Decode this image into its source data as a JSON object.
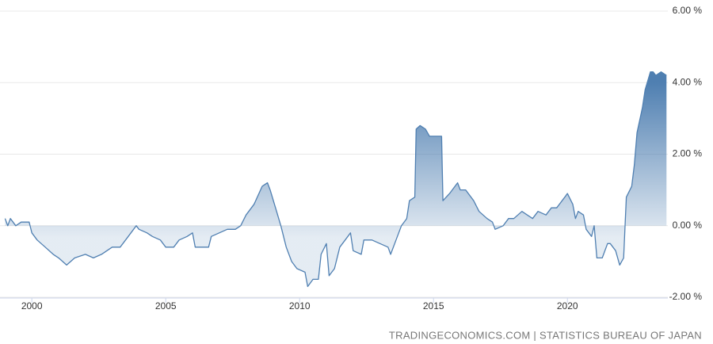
{
  "chart_data": {
    "type": "area",
    "source": "TRADINGECONOMICS.COM | STATISTICS BUREAU OF JAPAN",
    "color": "#4f7fb1",
    "grid": true,
    "y_axis_side": "right",
    "xlim": [
      1998.9,
      2023.75
    ],
    "xticks": [
      2000,
      2005,
      2010,
      2015,
      2020
    ],
    "ylim": [
      -2,
      6
    ],
    "yticks": [
      {
        "value": -2,
        "label": "-2.00 %"
      },
      {
        "value": 0,
        "label": "0.00 %"
      },
      {
        "value": 2,
        "label": "2.00 %"
      },
      {
        "value": 4,
        "label": "4.00 %"
      },
      {
        "value": 6,
        "label": "6.00 %"
      }
    ],
    "x": [
      1999.0,
      1999.1,
      1999.2,
      1999.4,
      1999.6,
      1999.9,
      2000.0,
      2000.2,
      2000.5,
      2000.8,
      2001.0,
      2001.3,
      2001.6,
      2002.0,
      2002.3,
      2002.6,
      2003.0,
      2003.3,
      2003.6,
      2003.9,
      2004.0,
      2004.3,
      2004.5,
      2004.8,
      2005.0,
      2005.3,
      2005.5,
      2005.8,
      2006.0,
      2006.1,
      2006.6,
      2006.7,
      2007.0,
      2007.3,
      2007.6,
      2007.8,
      2008.0,
      2008.3,
      2008.6,
      2008.8,
      2008.9,
      2009.1,
      2009.3,
      2009.5,
      2009.7,
      2009.9,
      2010.2,
      2010.3,
      2010.5,
      2010.7,
      2010.8,
      2011.0,
      2011.1,
      2011.3,
      2011.5,
      2011.7,
      2011.9,
      2012.0,
      2012.3,
      2012.4,
      2012.7,
      2013.0,
      2013.3,
      2013.4,
      2013.6,
      2013.8,
      2014.0,
      2014.1,
      2014.3,
      2014.35,
      2014.5,
      2014.7,
      2014.85,
      2015.3,
      2015.35,
      2015.6,
      2015.9,
      2016.0,
      2016.2,
      2016.5,
      2016.7,
      2017.0,
      2017.2,
      2017.3,
      2017.6,
      2017.8,
      2018.0,
      2018.3,
      2018.5,
      2018.7,
      2018.9,
      2019.2,
      2019.4,
      2019.6,
      2019.9,
      2020.0,
      2020.2,
      2020.3,
      2020.4,
      2020.6,
      2020.7,
      2020.9,
      2021.0,
      2021.1,
      2021.3,
      2021.5,
      2021.6,
      2021.8,
      2021.95,
      2022.1,
      2022.2,
      2022.4,
      2022.5,
      2022.6,
      2022.8,
      2022.9,
      2023.1,
      2023.2,
      2023.3,
      2023.5,
      2023.7
    ],
    "values": [
      0.2,
      0.0,
      0.2,
      0.0,
      0.1,
      0.1,
      -0.2,
      -0.4,
      -0.6,
      -0.8,
      -0.9,
      -1.1,
      -0.9,
      -0.8,
      -0.9,
      -0.8,
      -0.6,
      -0.6,
      -0.3,
      0.0,
      -0.1,
      -0.2,
      -0.3,
      -0.4,
      -0.6,
      -0.6,
      -0.4,
      -0.3,
      -0.2,
      -0.6,
      -0.6,
      -0.3,
      -0.2,
      -0.1,
      -0.1,
      0.0,
      0.3,
      0.6,
      1.1,
      1.2,
      1.0,
      0.5,
      0.0,
      -0.6,
      -1.0,
      -1.2,
      -1.3,
      -1.7,
      -1.5,
      -1.5,
      -0.8,
      -0.5,
      -1.4,
      -1.2,
      -0.6,
      -0.4,
      -0.2,
      -0.7,
      -0.8,
      -0.4,
      -0.4,
      -0.5,
      -0.6,
      -0.8,
      -0.4,
      0.0,
      0.2,
      0.7,
      0.8,
      2.7,
      2.8,
      2.7,
      2.5,
      2.5,
      0.7,
      0.9,
      1.2,
      1.0,
      1.0,
      0.7,
      0.4,
      0.2,
      0.1,
      -0.1,
      0.0,
      0.2,
      0.2,
      0.4,
      0.3,
      0.2,
      0.4,
      0.3,
      0.5,
      0.5,
      0.8,
      0.9,
      0.6,
      0.2,
      0.4,
      0.3,
      -0.1,
      -0.3,
      0.0,
      -0.9,
      -0.9,
      -0.5,
      -0.5,
      -0.7,
      -1.1,
      -0.9,
      0.8,
      1.1,
      1.7,
      2.6,
      3.3,
      3.8,
      4.3,
      4.3,
      4.2,
      4.3,
      4.2
    ]
  }
}
